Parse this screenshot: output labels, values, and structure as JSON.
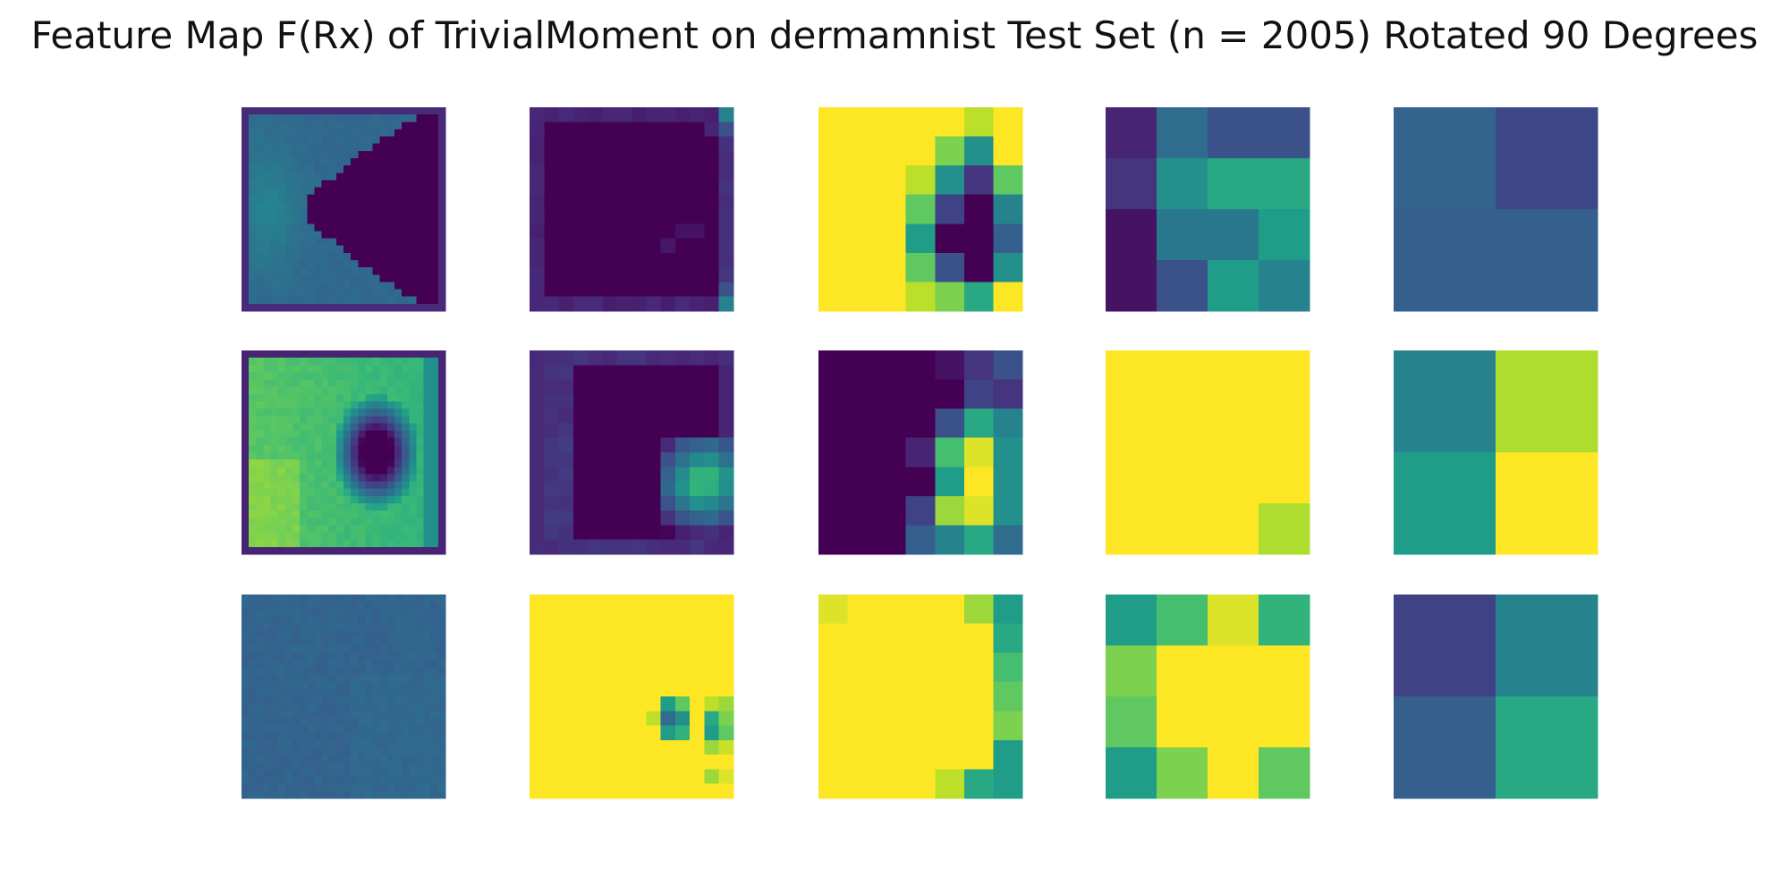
{
  "title": "Feature Map F(Rx) of TrivialMoment on dermamnist Test Set (n = 2005) Rotated 90 Degrees",
  "colormap": {
    "name": "viridis",
    "stops": [
      "#440154",
      "#482878",
      "#3e4989",
      "#31688e",
      "#26828e",
      "#1f9e89",
      "#35b779",
      "#6ece58",
      "#b5de2b",
      "#fde725"
    ]
  },
  "chart_data": {
    "type": "heatmap",
    "grid": {
      "rows": 3,
      "cols": 5
    },
    "value_range": [
      0,
      1
    ],
    "axes_visible": false,
    "panels": [
      {
        "row": 0,
        "col": 0,
        "kind": "procedural",
        "pattern": "bowtie",
        "size": 28
      },
      {
        "row": 0,
        "col": 1,
        "kind": "procedural",
        "pattern": "edge_frame",
        "size": 14
      },
      {
        "row": 0,
        "col": 2,
        "size": 7,
        "values": [
          [
            1.0,
            1.0,
            1.0,
            1.0,
            1.0,
            0.9,
            1.0
          ],
          [
            1.0,
            1.0,
            1.0,
            1.0,
            0.8,
            0.5,
            1.0
          ],
          [
            1.0,
            1.0,
            1.0,
            0.9,
            0.5,
            0.15,
            0.75
          ],
          [
            1.0,
            1.0,
            1.0,
            0.75,
            0.2,
            0.0,
            0.45
          ],
          [
            1.0,
            1.0,
            1.0,
            0.55,
            0.0,
            0.0,
            0.3
          ],
          [
            1.0,
            1.0,
            1.0,
            0.75,
            0.25,
            0.0,
            0.5
          ],
          [
            1.0,
            1.0,
            1.0,
            0.9,
            0.8,
            0.6,
            1.0
          ]
        ]
      },
      {
        "row": 0,
        "col": 3,
        "size": 4,
        "values": [
          [
            0.1,
            0.35,
            0.25,
            0.25
          ],
          [
            0.15,
            0.5,
            0.6,
            0.6
          ],
          [
            0.05,
            0.4,
            0.4,
            0.55
          ],
          [
            0.05,
            0.25,
            0.55,
            0.45
          ]
        ]
      },
      {
        "row": 0,
        "col": 4,
        "size": 2,
        "values": [
          [
            0.32,
            0.22
          ],
          [
            0.3,
            0.3
          ]
        ]
      },
      {
        "row": 1,
        "col": 0,
        "kind": "procedural",
        "pattern": "ring_hole",
        "size": 28
      },
      {
        "row": 1,
        "col": 1,
        "kind": "procedural",
        "pattern": "blob_right",
        "size": 14
      },
      {
        "row": 1,
        "col": 2,
        "size": 7,
        "values": [
          [
            0.0,
            0.0,
            0.0,
            0.0,
            0.05,
            0.15,
            0.25
          ],
          [
            0.0,
            0.0,
            0.0,
            0.0,
            0.0,
            0.2,
            0.15
          ],
          [
            0.0,
            0.0,
            0.0,
            0.0,
            0.25,
            0.6,
            0.45
          ],
          [
            0.0,
            0.0,
            0.0,
            0.1,
            0.7,
            0.95,
            0.5
          ],
          [
            0.0,
            0.0,
            0.0,
            0.0,
            0.55,
            1.0,
            0.5
          ],
          [
            0.0,
            0.0,
            0.0,
            0.2,
            0.85,
            0.95,
            0.5
          ],
          [
            0.0,
            0.0,
            0.0,
            0.3,
            0.45,
            0.6,
            0.35
          ]
        ]
      },
      {
        "row": 1,
        "col": 3,
        "size": 4,
        "values": [
          [
            1.0,
            1.0,
            1.0,
            1.0
          ],
          [
            1.0,
            1.0,
            1.0,
            1.0
          ],
          [
            1.0,
            1.0,
            1.0,
            1.0
          ],
          [
            1.0,
            1.0,
            1.0,
            0.88
          ]
        ]
      },
      {
        "row": 1,
        "col": 4,
        "size": 2,
        "values": [
          [
            0.45,
            0.88
          ],
          [
            0.55,
            1.0
          ]
        ]
      },
      {
        "row": 2,
        "col": 0,
        "kind": "procedural",
        "pattern": "flat_noise",
        "size": 28
      },
      {
        "row": 2,
        "col": 1,
        "kind": "procedural",
        "pattern": "corner_cluster",
        "size": 14
      },
      {
        "row": 2,
        "col": 2,
        "size": 7,
        "values": [
          [
            0.95,
            1.0,
            1.0,
            1.0,
            1.0,
            0.85,
            0.55
          ],
          [
            1.0,
            1.0,
            1.0,
            1.0,
            1.0,
            1.0,
            0.6
          ],
          [
            1.0,
            1.0,
            1.0,
            1.0,
            1.0,
            1.0,
            0.7
          ],
          [
            1.0,
            1.0,
            1.0,
            1.0,
            1.0,
            1.0,
            0.75
          ],
          [
            1.0,
            1.0,
            1.0,
            1.0,
            1.0,
            1.0,
            0.8
          ],
          [
            1.0,
            1.0,
            1.0,
            1.0,
            1.0,
            1.0,
            0.55
          ],
          [
            1.0,
            1.0,
            1.0,
            1.0,
            0.9,
            0.6,
            0.55
          ]
        ]
      },
      {
        "row": 2,
        "col": 3,
        "size": 4,
        "values": [
          [
            0.55,
            0.7,
            0.95,
            0.65
          ],
          [
            0.8,
            1.0,
            1.0,
            1.0
          ],
          [
            0.75,
            1.0,
            1.0,
            1.0
          ],
          [
            0.55,
            0.8,
            1.0,
            0.75
          ]
        ]
      },
      {
        "row": 2,
        "col": 4,
        "size": 2,
        "values": [
          [
            0.2,
            0.45
          ],
          [
            0.3,
            0.6
          ]
        ]
      }
    ]
  }
}
